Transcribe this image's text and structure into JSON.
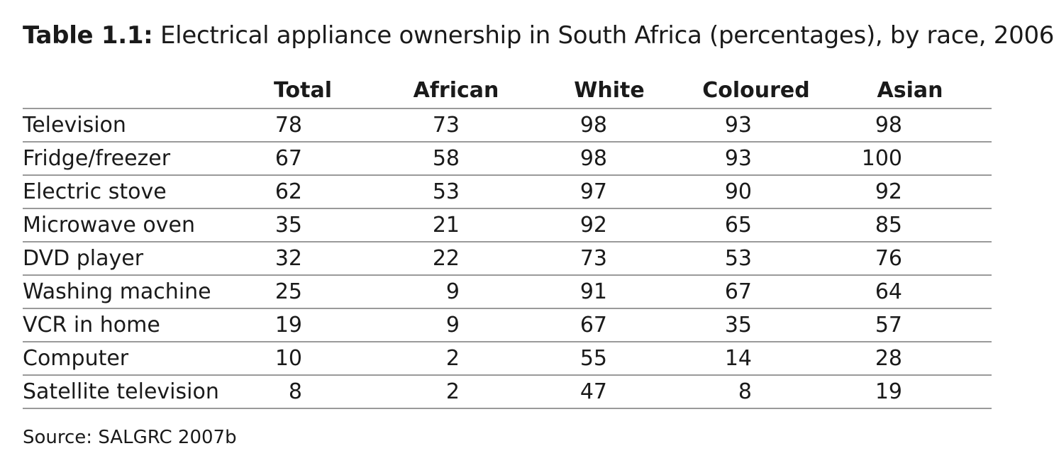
{
  "title": {
    "label": "Table 1.1:",
    "text": " Electrical appliance ownership in South Africa (percentages), by race, 2006"
  },
  "columns": [
    "",
    "Total",
    "African",
    "White",
    "Coloured",
    "Asian"
  ],
  "rows": [
    {
      "label": "Television",
      "values": [
        "78",
        "73",
        "98",
        "93",
        "98"
      ]
    },
    {
      "label": "Fridge/freezer",
      "values": [
        "67",
        "58",
        "98",
        "93",
        "100"
      ]
    },
    {
      "label": "Electric stove",
      "values": [
        "62",
        "53",
        "97",
        "90",
        "92"
      ]
    },
    {
      "label": "Microwave oven",
      "values": [
        "35",
        "21",
        "92",
        "65",
        "85"
      ]
    },
    {
      "label": "DVD player",
      "values": [
        "32",
        "22",
        "73",
        "53",
        "76"
      ]
    },
    {
      "label": "Washing machine",
      "values": [
        "25",
        "9",
        "91",
        "67",
        "64"
      ]
    },
    {
      "label": "VCR in home",
      "values": [
        "19",
        "9",
        "67",
        "35",
        "57"
      ]
    },
    {
      "label": "Computer",
      "values": [
        "10",
        "2",
        "55",
        "14",
        "28"
      ]
    },
    {
      "label": "Satellite television",
      "values": [
        "8",
        "2",
        "47",
        "8",
        "19"
      ]
    }
  ],
  "source": "Source: SALGRC 2007b"
}
